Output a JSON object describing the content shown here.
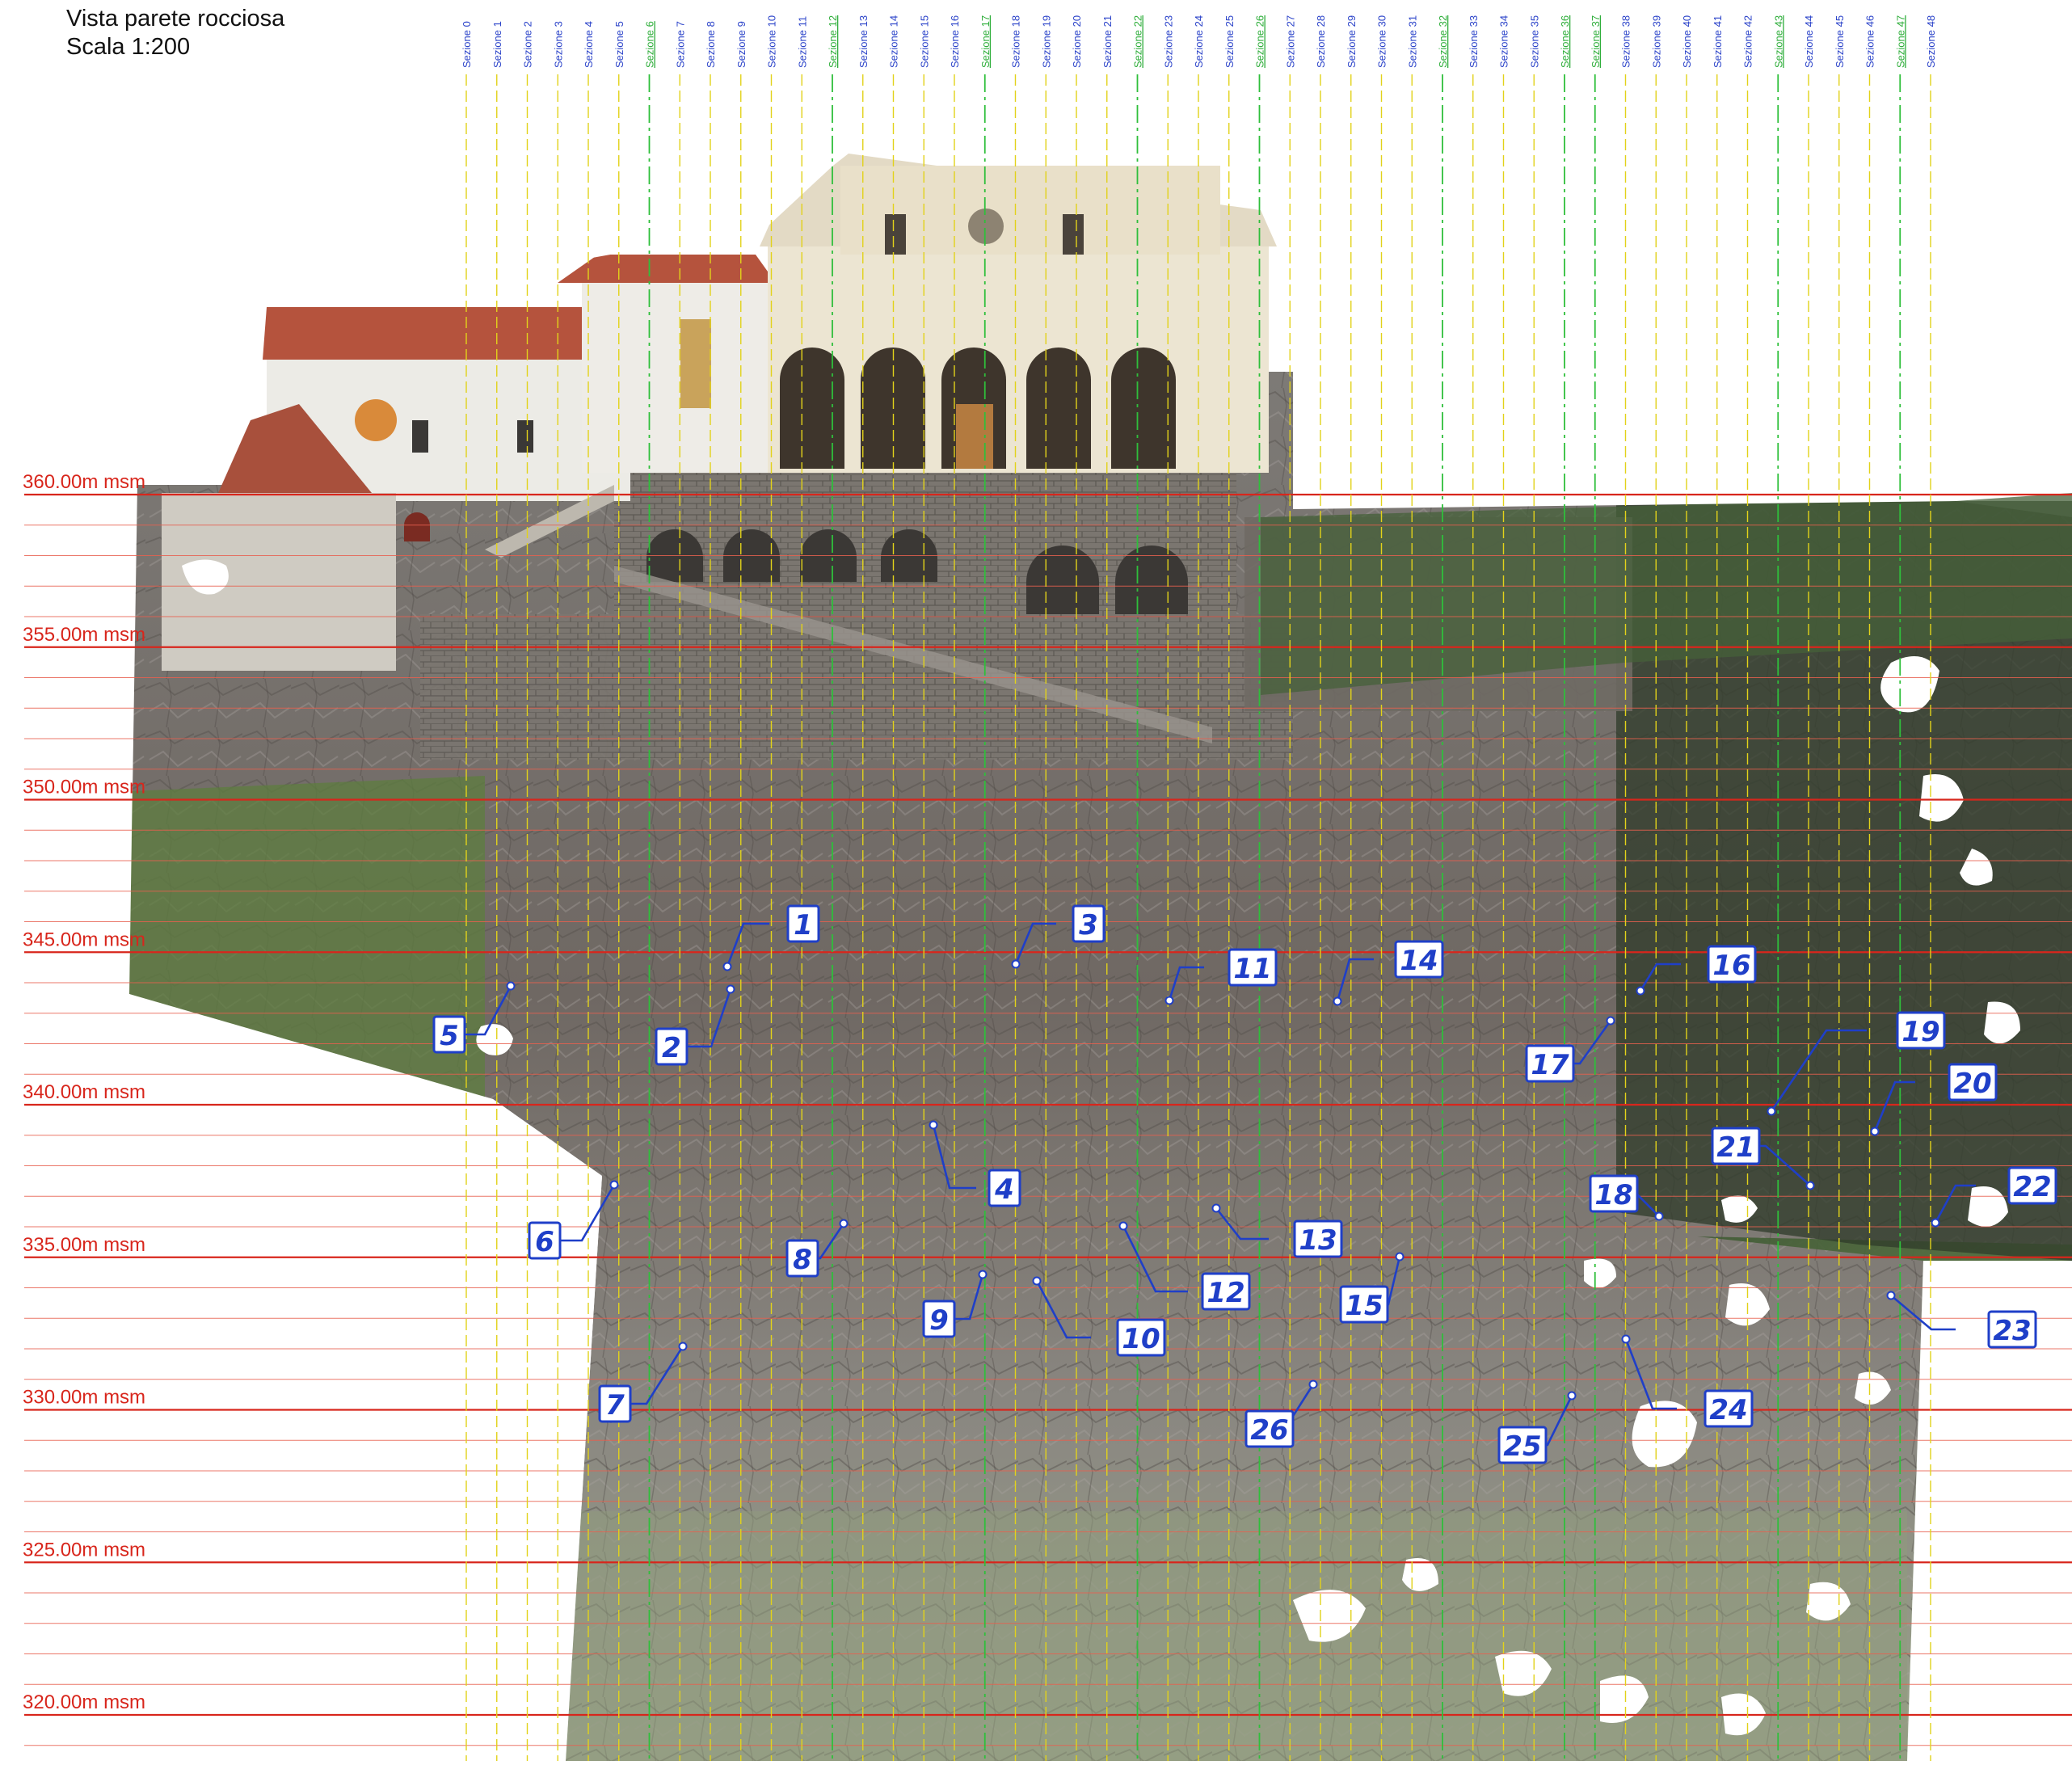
{
  "title": {
    "line1": "Vista parete rocciosa",
    "line2": "Scala 1:200"
  },
  "colors": {
    "level_line": "#d8261c",
    "minor_line": "#e8604f",
    "section_normal": "#e2d21a",
    "section_key": "#2fbf3b",
    "section_label_normal": "#2b43c9",
    "section_label_key": "#2fae3b",
    "marker": "#1f3fc8"
  },
  "level_labels": [
    {
      "label": "360.00m msm",
      "elev": 360
    },
    {
      "label": "355.00m msm",
      "elev": 355
    },
    {
      "label": "350.00m msm",
      "elev": 350
    },
    {
      "label": "345.00m msm",
      "elev": 345
    },
    {
      "label": "340.00m msm",
      "elev": 340
    },
    {
      "label": "335.00m msm",
      "elev": 335
    },
    {
      "label": "330.00m msm",
      "elev": 330
    },
    {
      "label": "325.00m msm",
      "elev": 325
    },
    {
      "label": "320.00m msm",
      "elev": 320
    }
  ],
  "sections": [
    {
      "label": "Sezione 0",
      "key": false
    },
    {
      "label": "Sezione 1",
      "key": false
    },
    {
      "label": "Sezione 2",
      "key": false
    },
    {
      "label": "Sezione 3",
      "key": false
    },
    {
      "label": "Sezione 4",
      "key": false
    },
    {
      "label": "Sezione 5",
      "key": false
    },
    {
      "label": "Sezione 6",
      "key": true
    },
    {
      "label": "Sezione 7",
      "key": false
    },
    {
      "label": "Sezione 8",
      "key": false
    },
    {
      "label": "Sezione 9",
      "key": false
    },
    {
      "label": "Sezione 10",
      "key": false
    },
    {
      "label": "Sezione 11",
      "key": false
    },
    {
      "label": "Sezione 12",
      "key": true
    },
    {
      "label": "Sezione 13",
      "key": false
    },
    {
      "label": "Sezione 14",
      "key": false
    },
    {
      "label": "Sezione 15",
      "key": false
    },
    {
      "label": "Sezione 16",
      "key": false
    },
    {
      "label": "Sezione 17",
      "key": true
    },
    {
      "label": "Sezione 18",
      "key": false
    },
    {
      "label": "Sezione 19",
      "key": false
    },
    {
      "label": "Sezione 20",
      "key": false
    },
    {
      "label": "Sezione 21",
      "key": false
    },
    {
      "label": "Sezione 22",
      "key": true
    },
    {
      "label": "Sezione 23",
      "key": false
    },
    {
      "label": "Sezione 24",
      "key": false
    },
    {
      "label": "Sezione 25",
      "key": false
    },
    {
      "label": "Sezione 26",
      "key": true
    },
    {
      "label": "Sezione 27",
      "key": false
    },
    {
      "label": "Sezione 28",
      "key": false
    },
    {
      "label": "Sezione 29",
      "key": false
    },
    {
      "label": "Sezione 30",
      "key": false
    },
    {
      "label": "Sezione 31",
      "key": false
    },
    {
      "label": "Sezione 32",
      "key": true
    },
    {
      "label": "Sezione 33",
      "key": false
    },
    {
      "label": "Sezione 34",
      "key": false
    },
    {
      "label": "Sezione 35",
      "key": false
    },
    {
      "label": "Sezione 36",
      "key": true
    },
    {
      "label": "Sezione 37",
      "key": true
    },
    {
      "label": "Sezione 38",
      "key": false
    },
    {
      "label": "Sezione 39",
      "key": false
    },
    {
      "label": "Sezione 40",
      "key": false
    },
    {
      "label": "Sezione 41",
      "key": false
    },
    {
      "label": "Sezione 42",
      "key": false
    },
    {
      "label": "Sezione 43",
      "key": true
    },
    {
      "label": "Sezione 44",
      "key": false
    },
    {
      "label": "Sezione 45",
      "key": false
    },
    {
      "label": "Sezione 46",
      "key": false
    },
    {
      "label": "Sezione 47",
      "key": true
    },
    {
      "label": "Sezione 48",
      "key": false
    }
  ],
  "markers": [
    "1",
    "2",
    "3",
    "4",
    "5",
    "6",
    "7",
    "8",
    "9",
    "10",
    "11",
    "12",
    "13",
    "14",
    "15",
    "16",
    "17",
    "18",
    "19",
    "20",
    "21",
    "22",
    "23",
    "24",
    "25",
    "26"
  ]
}
